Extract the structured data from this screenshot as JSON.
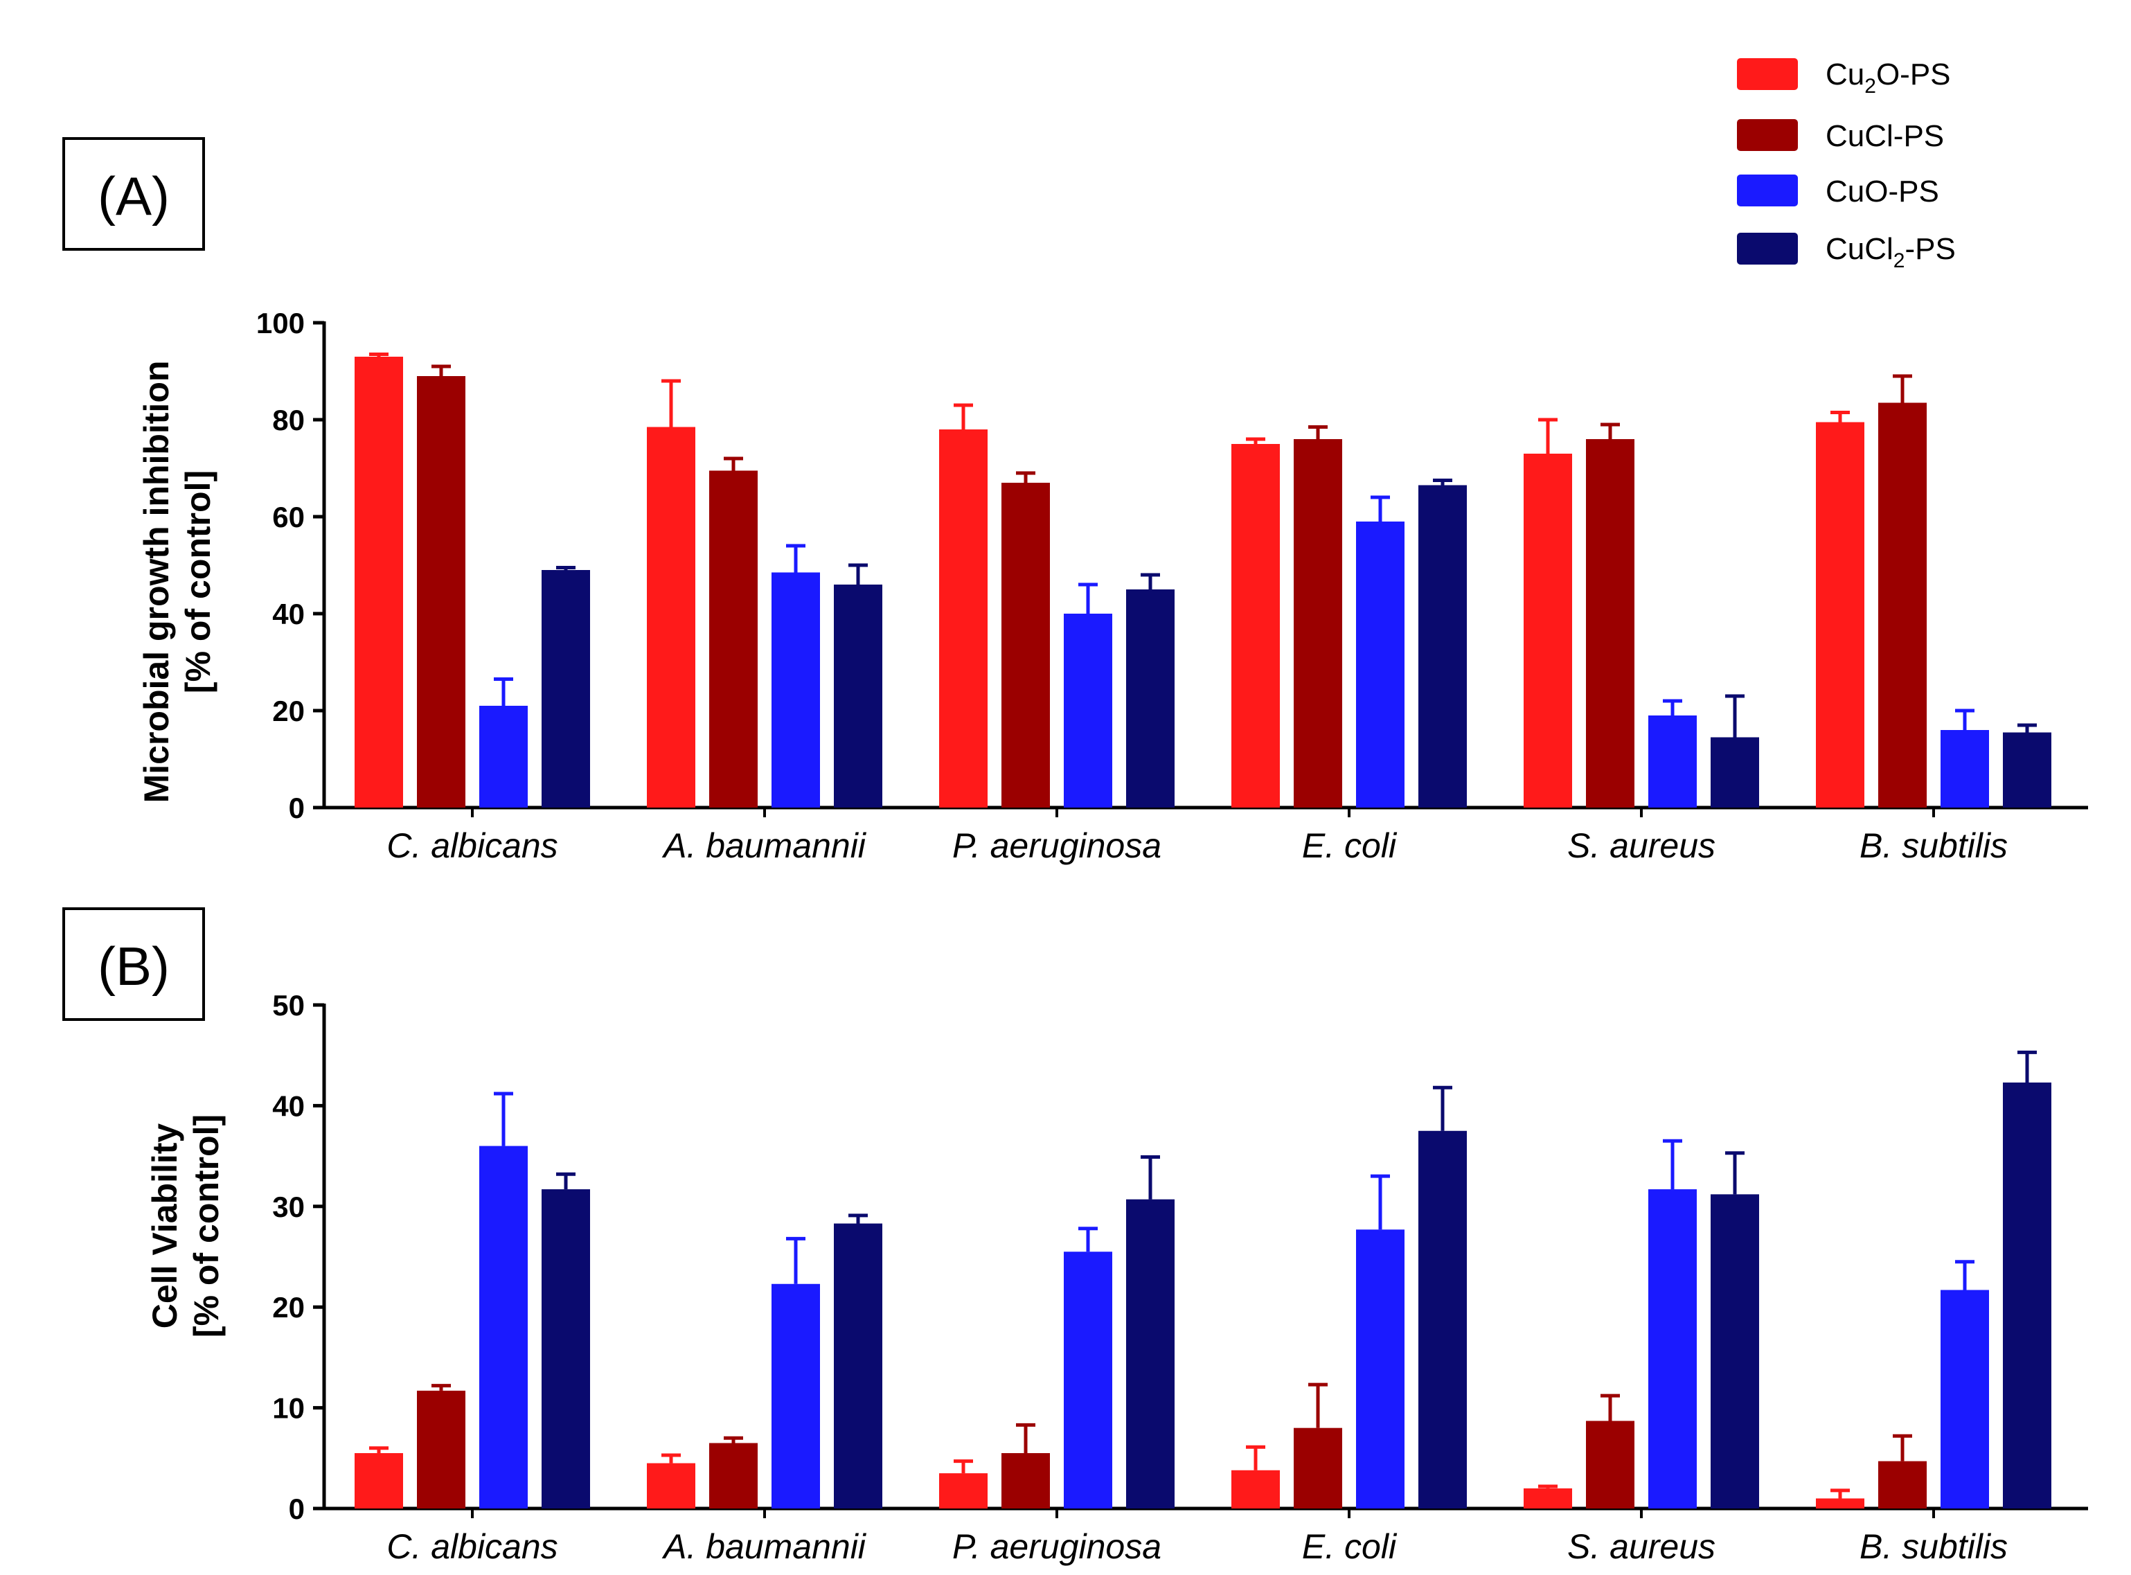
{
  "figure": {
    "legend": [
      {
        "base": "Cu",
        "sub": "2",
        "rest": "O-PS",
        "color": "#ff1a1a"
      },
      {
        "base": "CuCl-PS",
        "sub": "",
        "rest": "",
        "color": "#9b0000"
      },
      {
        "base": "CuO-PS",
        "sub": "",
        "rest": "",
        "color": "#1a1aff"
      },
      {
        "base": "CuCl",
        "sub": "2",
        "rest": "-PS",
        "color": "#0a0a6e"
      }
    ]
  },
  "chart_data": [
    {
      "type": "bar",
      "panel_label": "(A)",
      "ylabel_lines": [
        "Microbial growth inhibition",
        "[% of control]"
      ],
      "categories": [
        "C. albicans",
        "A. baumannii",
        "P. aeruginosa",
        "E. coli",
        "S. aureus",
        "B. subtilis"
      ],
      "ylim": [
        0,
        100
      ],
      "yticks": [
        0,
        20,
        40,
        60,
        80,
        100
      ],
      "series": [
        {
          "name": "Cu2O-PS",
          "color": "#ff1a1a",
          "values": [
            93,
            78.5,
            78,
            75,
            73,
            79.5
          ],
          "errors": [
            0.5,
            9.5,
            5,
            1,
            7,
            2
          ]
        },
        {
          "name": "CuCl-PS",
          "color": "#9b0000",
          "values": [
            89,
            69.5,
            67,
            76,
            76,
            83.5
          ],
          "errors": [
            2,
            2.5,
            2,
            2.5,
            3,
            5.5
          ]
        },
        {
          "name": "CuO-PS",
          "color": "#1a1aff",
          "values": [
            21,
            48.5,
            40,
            59,
            19,
            16
          ],
          "errors": [
            5.5,
            5.5,
            6,
            5,
            3,
            4
          ]
        },
        {
          "name": "CuCl2-PS",
          "color": "#0a0a6e",
          "values": [
            49,
            46,
            45,
            66.5,
            14.5,
            15.5
          ],
          "errors": [
            0.5,
            4,
            3,
            1,
            8.5,
            1.5
          ]
        }
      ]
    },
    {
      "type": "bar",
      "panel_label": "(B)",
      "ylabel_lines": [
        "Cell Viability",
        "[% of control]"
      ],
      "categories": [
        "C. albicans",
        "A. baumannii",
        "P. aeruginosa",
        "E. coli",
        "S. aureus",
        "B. subtilis"
      ],
      "ylim": [
        0,
        50
      ],
      "yticks": [
        0,
        10,
        20,
        30,
        40,
        50
      ],
      "series": [
        {
          "name": "Cu2O-PS",
          "color": "#ff1a1a",
          "values": [
            5.5,
            4.5,
            3.5,
            3.8,
            2,
            1
          ],
          "errors": [
            0.5,
            0.8,
            1.2,
            2.3,
            0.2,
            0.8
          ]
        },
        {
          "name": "CuCl-PS",
          "color": "#9b0000",
          "values": [
            11.7,
            6.5,
            5.5,
            8,
            8.7,
            4.7
          ],
          "errors": [
            0.5,
            0.5,
            2.8,
            4.3,
            2.5,
            2.5
          ]
        },
        {
          "name": "CuO-PS",
          "color": "#1a1aff",
          "values": [
            36,
            22.3,
            25.5,
            27.7,
            31.7,
            21.7
          ],
          "errors": [
            5.2,
            4.5,
            2.3,
            5.3,
            4.8,
            2.8
          ]
        },
        {
          "name": "CuCl2-PS",
          "color": "#0a0a6e",
          "values": [
            31.7,
            28.3,
            30.7,
            37.5,
            31.2,
            42.3
          ],
          "errors": [
            1.5,
            0.8,
            4.2,
            4.3,
            4.1,
            3
          ]
        }
      ]
    }
  ]
}
